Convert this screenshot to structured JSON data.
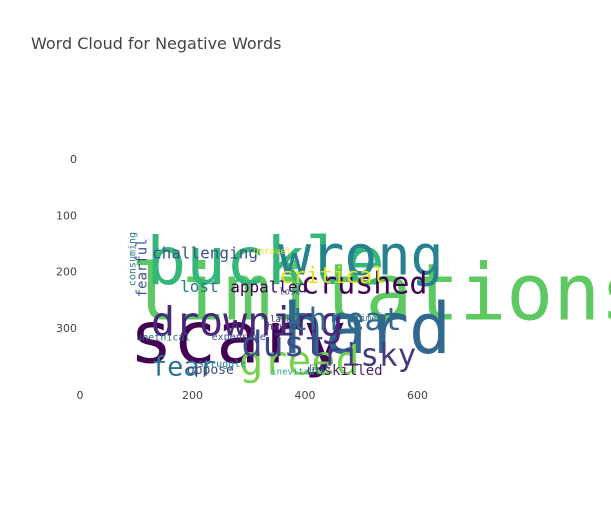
{
  "chart_data": {
    "type": "wordcloud",
    "title": "Word Cloud for Negative Words",
    "xlim": [
      0,
      800
    ],
    "ylim": [
      400,
      0
    ],
    "x_ticks": [
      0,
      200,
      400,
      600
    ],
    "y_ticks": [
      0,
      100,
      200,
      300
    ],
    "words": [
      {
        "text": "limitations",
        "x": 90,
        "y": 285,
        "size": 78,
        "color": "#5ec962",
        "rotate": 0
      },
      {
        "text": "scary",
        "x": 88,
        "y": 362,
        "size": 72,
        "color": "#440154",
        "rotate": 0
      },
      {
        "text": "hard",
        "x": 360,
        "y": 345,
        "size": 70,
        "color": "#31688e",
        "rotate": 0
      },
      {
        "text": "buckle",
        "x": 118,
        "y": 222,
        "size": 66,
        "color": "#35b779",
        "rotate": 0
      },
      {
        "text": "wrong",
        "x": 352,
        "y": 205,
        "size": 55,
        "color": "#26828e",
        "rotate": 0
      },
      {
        "text": "drowning",
        "x": 126,
        "y": 314,
        "size": 40,
        "color": "#482878",
        "rotate": 0
      },
      {
        "text": "greed",
        "x": 283,
        "y": 383,
        "size": 40,
        "color": "#7ad151",
        "rotate": 0
      },
      {
        "text": "dust",
        "x": 287,
        "y": 350,
        "size": 35,
        "color": "#3e4989",
        "rotate": 0
      },
      {
        "text": "threat",
        "x": 373,
        "y": 304,
        "size": 31,
        "color": "#31688e",
        "rotate": 0
      },
      {
        "text": "risky",
        "x": 432,
        "y": 367,
        "size": 31,
        "color": "#443983",
        "rotate": 0
      },
      {
        "text": "crushed",
        "x": 393,
        "y": 239,
        "size": 30,
        "color": "#440154",
        "rotate": 0
      },
      {
        "text": "fear",
        "x": 126,
        "y": 385,
        "size": 27,
        "color": "#2c728e",
        "rotate": 0
      },
      {
        "text": "critical",
        "x": 355,
        "y": 220,
        "size": 22,
        "color": "#dde318",
        "rotate": 0
      },
      {
        "text": "challenging",
        "x": 128,
        "y": 177,
        "size": 16,
        "color": "#3b528b",
        "rotate": 0
      },
      {
        "text": "appalled",
        "x": 267,
        "y": 237,
        "size": 16,
        "color": "#440154",
        "rotate": 0
      },
      {
        "text": "lost",
        "x": 178,
        "y": 236,
        "size": 16,
        "color": "#2a788e",
        "rotate": 0
      },
      {
        "text": "unskilled",
        "x": 403,
        "y": 384,
        "size": 14,
        "color": "#481f70",
        "rotate": 0
      },
      {
        "text": "oppose",
        "x": 190,
        "y": 382,
        "size": 13,
        "color": "#414487",
        "rotate": 0
      },
      {
        "text": "fearful",
        "x": 118,
        "y": 246,
        "size": 14,
        "color": "#3b528b",
        "rotate": -90
      },
      {
        "text": "consuming",
        "x": 99,
        "y": 226,
        "size": 10,
        "color": "#2a788e",
        "rotate": -90
      },
      {
        "text": "unethical",
        "x": 100,
        "y": 323,
        "size": 10,
        "color": "#31688e",
        "rotate": 0
      },
      {
        "text": "expensive",
        "x": 234,
        "y": 322,
        "size": 10,
        "color": "#3b528b",
        "rotate": 0
      },
      {
        "text": "struggle",
        "x": 210,
        "y": 370,
        "size": 10,
        "color": "#23888e",
        "rotate": 0
      },
      {
        "text": "havoc",
        "x": 332,
        "y": 303,
        "size": 10,
        "color": "#472d7b",
        "rotate": 0
      },
      {
        "text": "lack",
        "x": 338,
        "y": 290,
        "size": 9,
        "color": "#472d7b",
        "rotate": 0
      },
      {
        "text": "time",
        "x": 489,
        "y": 288,
        "size": 9,
        "color": "#2a788e",
        "rotate": 0
      },
      {
        "text": "lose",
        "x": 354,
        "y": 241,
        "size": 9,
        "color": "#3b528b",
        "rotate": 0
      },
      {
        "text": "unravel",
        "x": 308,
        "y": 169,
        "size": 9,
        "color": "#dde318",
        "rotate": 0
      },
      {
        "text": "inevitable",
        "x": 340,
        "y": 383,
        "size": 9,
        "color": "#20a486",
        "rotate": 0
      },
      {
        "text": "risk",
        "x": 406,
        "y": 374,
        "size": 9,
        "color": "#31688e",
        "rotate": 0
      }
    ]
  }
}
